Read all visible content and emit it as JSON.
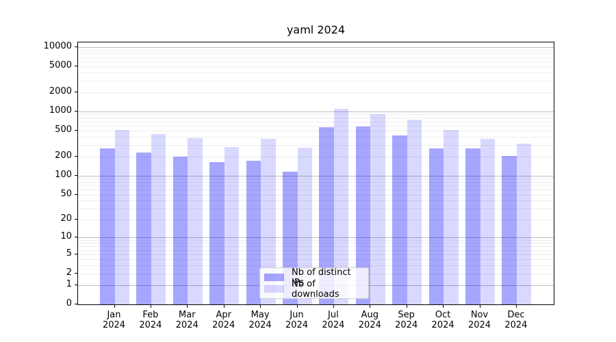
{
  "chart_data": {
    "type": "bar",
    "title": "yaml 2024",
    "categories": [
      "Jan 2024",
      "Feb 2024",
      "Mar 2024",
      "Apr 2024",
      "May 2024",
      "Jun 2024",
      "Jul 2024",
      "Aug 2024",
      "Sep 2024",
      "Oct 2024",
      "Nov 2024",
      "Dec 2024"
    ],
    "series": [
      {
        "name": "Nb of distinct IPs",
        "color": "rgba(0,0,255,0.35)",
        "values": [
          263,
          231,
          196,
          164,
          170,
          116,
          568,
          578,
          427,
          265,
          265,
          204
        ]
      },
      {
        "name": "Nb of downloads",
        "color": "rgba(0,0,255,0.15)",
        "values": [
          512,
          441,
          381,
          281,
          374,
          270,
          1110,
          912,
          750,
          516,
          372,
          318
        ]
      }
    ],
    "xlabel": "",
    "ylabel": "",
    "y_scale": "log1p",
    "y_ticks": [
      0,
      1,
      2,
      5,
      10,
      20,
      50,
      100,
      200,
      500,
      1000,
      2000,
      5000,
      10000
    ],
    "ylim": [
      0,
      12000
    ],
    "grid": true,
    "legend_position": "lower center"
  },
  "colors": {
    "grid_minor": "#ededed",
    "grid_major": "#bcbcbc",
    "axis": "#000000",
    "legend_border": "#cccccc"
  }
}
